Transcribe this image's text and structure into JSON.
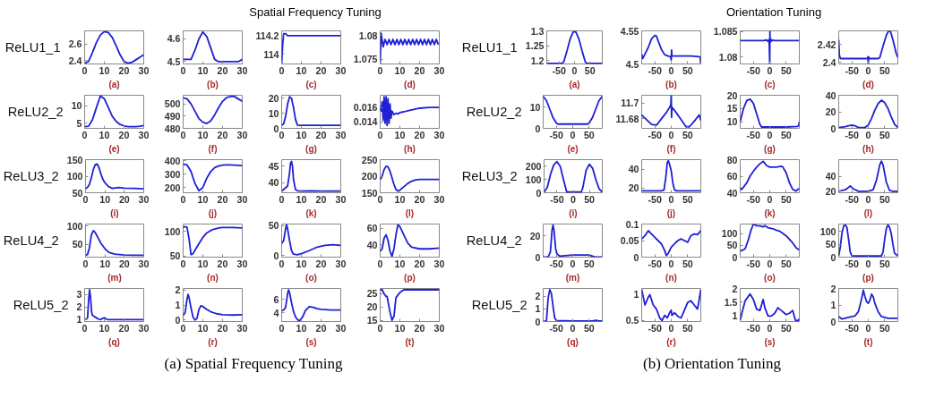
{
  "chart_data": [
    {
      "type": "line",
      "annotations": [
        "(a) Spatial Frequency Tuning"
      ],
      "ylabel": "ReLU1_1",
      "xlabel": "(a)",
      "xlim": [
        0,
        30
      ],
      "ylim": [
        2.36,
        2.76
      ],
      "xticks": [
        0,
        10,
        20,
        30
      ],
      "yticks": [
        2.4,
        2.6
      ],
      "x": [
        0,
        2,
        4,
        6,
        8,
        10,
        12,
        14,
        16,
        18,
        20,
        22,
        24,
        26,
        28,
        30
      ],
      "series": [
        {
          "color": "#1f1fd6",
          "values": [
            2.37,
            2.39,
            2.5,
            2.62,
            2.71,
            2.75,
            2.74,
            2.68,
            2.58,
            2.47,
            2.39,
            2.37,
            2.38,
            2.41,
            2.44,
            2.47
          ]
        }
      ]
    },
    {
      "type": "line",
      "xlabel": "(b)",
      "xlim": [
        0,
        30
      ],
      "ylim": [
        4.49,
        4.635
      ],
      "xticks": [
        0,
        10,
        20,
        30
      ],
      "yticks": [
        4.5,
        4.6
      ],
      "x": [
        0,
        2,
        4,
        6,
        8,
        10,
        12,
        14,
        16,
        18,
        20,
        22,
        24,
        26,
        28,
        30
      ],
      "series": [
        {
          "color": "#1f1fd6",
          "values": [
            4.51,
            4.51,
            4.51,
            4.55,
            4.6,
            4.63,
            4.61,
            4.56,
            4.51,
            4.5,
            4.5,
            4.5,
            4.5,
            4.5,
            4.5,
            4.51
          ]
        }
      ]
    },
    {
      "type": "line",
      "title": "Spatial Frequency Tuning",
      "xlabel": "(c)",
      "xlim": [
        0,
        30
      ],
      "ylim": [
        113.9,
        114.25
      ],
      "xticks": [
        0,
        10,
        20,
        30
      ],
      "yticks": [
        114,
        114.2
      ],
      "x": [
        0,
        0.5,
        1,
        2,
        3,
        5,
        10,
        20,
        30
      ],
      "series": [
        {
          "color": "#1f1fd6",
          "values": [
            113.9,
            114.1,
            114.22,
            114.22,
            114.2,
            114.2,
            114.2,
            114.2,
            114.2
          ]
        }
      ]
    },
    {
      "type": "line",
      "xlabel": "(d)",
      "xlim": [
        0,
        30
      ],
      "ylim": [
        1.074,
        1.081
      ],
      "xticks": [
        0,
        10,
        20,
        30
      ],
      "yticks": [
        1.075,
        1.08
      ],
      "x": [
        0,
        0.5,
        1.5,
        2.5,
        3.5,
        4.5,
        5.5,
        6.5,
        7.5,
        8.5,
        9.5,
        10.5,
        11.5,
        12.5,
        13.5,
        14.5,
        15.5,
        16.5,
        17.5,
        18.5,
        19.5,
        20.5,
        21.5,
        22.5,
        23.5,
        24.5,
        25.5,
        26.5,
        27.5,
        28.5,
        29.5
      ],
      "series": [
        {
          "color": "#1f1fd6",
          "values": [
            1.074,
            1.0805,
            1.0776,
            1.0792,
            1.0781,
            1.0792,
            1.0781,
            1.0792,
            1.0781,
            1.0792,
            1.0781,
            1.0792,
            1.0781,
            1.0792,
            1.0781,
            1.0792,
            1.0781,
            1.0792,
            1.0781,
            1.0792,
            1.0781,
            1.0792,
            1.0781,
            1.0792,
            1.0781,
            1.0792,
            1.0781,
            1.0792,
            1.0781,
            1.0792,
            1.0781
          ]
        }
      ]
    },
    {
      "type": "line",
      "ylabel": "ReLU2_2",
      "xlabel": "(e)",
      "xlim": [
        0,
        30
      ],
      "ylim": [
        3.5,
        13
      ],
      "xticks": [
        0,
        10,
        20,
        30
      ],
      "yticks": [
        5,
        10
      ],
      "x": [
        0,
        2,
        4,
        6,
        8,
        10,
        12,
        14,
        16,
        18,
        20,
        22,
        24,
        26,
        28,
        30
      ],
      "series": [
        {
          "color": "#1f1fd6",
          "values": [
            4,
            4.1,
            6,
            9.5,
            12.8,
            12,
            9.5,
            7,
            5.5,
            4.6,
            4.2,
            4,
            4,
            4,
            4.1,
            4.3
          ]
        }
      ]
    },
    {
      "type": "line",
      "xlabel": "(f)",
      "xlim": [
        0,
        30
      ],
      "ylim": [
        480,
        507
      ],
      "xticks": [
        0,
        10,
        20,
        30
      ],
      "yticks": [
        480,
        490,
        500
      ],
      "x": [
        0,
        2,
        4,
        6,
        8,
        10,
        12,
        14,
        16,
        18,
        20,
        22,
        24,
        26,
        28,
        30
      ],
      "series": [
        {
          "color": "#1f1fd6",
          "values": [
            505,
            504,
            500,
            494,
            488,
            485,
            484,
            486,
            491,
            497,
            502,
            505,
            506,
            506,
            504,
            502
          ]
        }
      ]
    },
    {
      "type": "line",
      "xlabel": "(g)",
      "xlim": [
        0,
        30
      ],
      "ylim": [
        0,
        22
      ],
      "xticks": [
        0,
        10,
        20,
        30
      ],
      "yticks": [
        0,
        10,
        20
      ],
      "x": [
        0,
        1,
        2,
        3,
        4,
        5,
        6,
        7,
        8,
        9,
        10,
        15,
        20,
        25,
        30
      ],
      "series": [
        {
          "color": "#1f1fd6",
          "values": [
            2,
            3,
            8,
            16,
            21,
            20,
            14,
            6,
            2.2,
            2,
            2,
            2,
            2,
            2,
            2
          ]
        }
      ]
    },
    {
      "type": "line",
      "xlabel": "(h)",
      "xlim": [
        0,
        30
      ],
      "ylim": [
        0.0131,
        0.0177
      ],
      "xticks": [
        0,
        10,
        20,
        30
      ],
      "yticks": [
        0.014,
        0.016
      ],
      "x": [
        0,
        0.5,
        1,
        1.5,
        2,
        2.5,
        3,
        3.5,
        4,
        4.5,
        5,
        5.5,
        6,
        7,
        8,
        9,
        10,
        12,
        15,
        20,
        25,
        30
      ],
      "series": [
        {
          "color": "#1f1fd6",
          "values": [
            0.0162,
            0.0155,
            0.0168,
            0.0142,
            0.0175,
            0.0138,
            0.0175,
            0.0135,
            0.0172,
            0.0138,
            0.0165,
            0.0145,
            0.0155,
            0.015,
            0.0152,
            0.0151,
            0.0153,
            0.0154,
            0.0156,
            0.0159,
            0.016,
            0.016
          ]
        }
      ]
    },
    {
      "type": "line",
      "ylabel": "ReLU3_2",
      "xlabel": "(i)",
      "xlim": [
        0,
        30
      ],
      "ylim": [
        50,
        150
      ],
      "xticks": [
        0,
        10,
        20,
        30
      ],
      "yticks": [
        50,
        100,
        150
      ],
      "x": [
        0,
        1,
        2,
        3,
        4,
        5,
        6,
        7,
        8,
        9,
        10,
        12,
        14,
        17,
        20,
        25,
        30
      ],
      "series": [
        {
          "color": "#1f1fd6",
          "values": [
            62,
            66,
            75,
            95,
            120,
            135,
            137,
            125,
            105,
            90,
            80,
            68,
            63,
            66,
            64,
            63,
            62
          ]
        }
      ]
    },
    {
      "type": "line",
      "xlabel": "(j)",
      "xlim": [
        0,
        30
      ],
      "ylim": [
        160,
        410
      ],
      "xticks": [
        0,
        10,
        20,
        30
      ],
      "yticks": [
        200,
        300,
        400
      ],
      "x": [
        0,
        2,
        4,
        6,
        8,
        10,
        12,
        14,
        16,
        18,
        20,
        22,
        24,
        26,
        28,
        30
      ],
      "series": [
        {
          "color": "#1f1fd6",
          "values": [
            375,
            370,
            320,
            230,
            175,
            200,
            270,
            320,
            350,
            362,
            368,
            370,
            370,
            369,
            367,
            365
          ]
        }
      ]
    },
    {
      "type": "line",
      "xlabel": "(k)",
      "xlim": [
        0,
        30
      ],
      "ylim": [
        37,
        47
      ],
      "xticks": [
        0,
        10,
        20,
        30
      ],
      "yticks": [
        40,
        45
      ],
      "x": [
        0,
        1,
        2,
        3,
        4,
        4.5,
        5,
        5.5,
        6,
        7,
        8,
        10,
        15,
        20,
        25,
        30
      ],
      "series": [
        {
          "color": "#1f1fd6",
          "values": [
            37.5,
            38,
            38.5,
            39,
            43,
            46,
            46.5,
            45,
            41,
            38,
            37.6,
            37.5,
            37.6,
            37.5,
            37.5,
            37.5
          ]
        }
      ]
    },
    {
      "type": "line",
      "xlabel": "(l)",
      "xlim": [
        0,
        30
      ],
      "ylim": [
        150,
        250
      ],
      "xticks": [
        0,
        10,
        20,
        30
      ],
      "yticks": [
        150,
        200,
        250
      ],
      "x": [
        0,
        1,
        2,
        3,
        4,
        5,
        6,
        7,
        8,
        9,
        10,
        12,
        14,
        16,
        18,
        20,
        25,
        30
      ],
      "series": [
        {
          "color": "#1f1fd6",
          "values": [
            190,
            200,
            220,
            230,
            228,
            215,
            195,
            175,
            160,
            155,
            158,
            168,
            178,
            185,
            189,
            190,
            190,
            190
          ]
        }
      ]
    },
    {
      "type": "line",
      "ylabel": "ReLU4_2",
      "xlabel": "(m)",
      "xlim": [
        0,
        30
      ],
      "ylim": [
        15,
        105
      ],
      "xticks": [
        0,
        10,
        20,
        30
      ],
      "yticks": [
        50,
        100
      ],
      "x": [
        0,
        1,
        2,
        3,
        4,
        5,
        6,
        7,
        8,
        10,
        12,
        15,
        20,
        25,
        30
      ],
      "series": [
        {
          "color": "#1f1fd6",
          "values": [
            20,
            22,
            40,
            75,
            87,
            82,
            72,
            62,
            52,
            38,
            28,
            23,
            21,
            20,
            20
          ]
        }
      ]
    },
    {
      "type": "line",
      "xlabel": "(n)",
      "xlim": [
        0,
        30
      ],
      "ylim": [
        48,
        115
      ],
      "xticks": [
        0,
        10,
        20,
        30
      ],
      "yticks": [
        50,
        100
      ],
      "x": [
        0,
        1,
        2,
        3,
        4,
        5,
        6,
        8,
        10,
        12,
        14,
        16,
        18,
        20,
        25,
        30
      ],
      "series": [
        {
          "color": "#1f1fd6",
          "values": [
            108,
            110,
            108,
            85,
            53,
            55,
            62,
            75,
            88,
            97,
            102,
            105,
            107,
            108,
            108,
            107
          ]
        }
      ]
    },
    {
      "type": "line",
      "xlabel": "(o)",
      "xlim": [
        0,
        30
      ],
      "ylim": [
        -3,
        53
      ],
      "xticks": [
        0,
        10,
        20,
        30
      ],
      "yticks": [
        0,
        50
      ],
      "x": [
        0,
        1,
        2,
        2.5,
        3,
        4,
        5,
        6,
        8,
        10,
        14,
        18,
        22,
        26,
        30
      ],
      "series": [
        {
          "color": "#1f1fd6",
          "values": [
            20,
            25,
            45,
            52,
            45,
            25,
            8,
            2,
            1,
            3,
            8,
            14,
            17,
            18,
            17
          ]
        }
      ]
    },
    {
      "type": "line",
      "xlabel": "(p)",
      "xlim": [
        0,
        30
      ],
      "ylim": [
        25,
        65
      ],
      "xticks": [
        0,
        10,
        20,
        30
      ],
      "yticks": [
        40,
        60
      ],
      "x": [
        0,
        1,
        2,
        3,
        4,
        5,
        6,
        7,
        8,
        9,
        10,
        12,
        14,
        16,
        20,
        25,
        30
      ],
      "series": [
        {
          "color": "#1f1fd6",
          "values": [
            32,
            35,
            48,
            52,
            45,
            32,
            26,
            35,
            52,
            64,
            62,
            52,
            42,
            37,
            35,
            35,
            36
          ]
        }
      ]
    },
    {
      "type": "line",
      "ylabel": "ReLU5_2",
      "xlabel": "(q)",
      "xlim": [
        0,
        30
      ],
      "ylim": [
        0.8,
        3.5
      ],
      "xticks": [
        0,
        10,
        20,
        30
      ],
      "yticks": [
        1,
        2,
        3
      ],
      "x": [
        0,
        1,
        1.5,
        2,
        2.5,
        3,
        3.5,
        4,
        5,
        6,
        7,
        8,
        9,
        10,
        11,
        12,
        15,
        20,
        30
      ],
      "series": [
        {
          "color": "#1f1fd6",
          "values": [
            1,
            1,
            1.1,
            2.5,
            3.4,
            2.8,
            1.6,
            1.3,
            1.2,
            1.1,
            1,
            0.95,
            1.05,
            1.1,
            1,
            0.95,
            0.95,
            0.95,
            0.95
          ]
        }
      ]
    },
    {
      "type": "line",
      "xlabel": "(r)",
      "xlim": [
        0,
        30
      ],
      "ylim": [
        -0.1,
        2.1
      ],
      "xticks": [
        0,
        10,
        20,
        30
      ],
      "yticks": [
        0,
        1,
        2
      ],
      "x": [
        0,
        1,
        2,
        2.5,
        3,
        4,
        5,
        6,
        7,
        8,
        9,
        10,
        12,
        14,
        17,
        20,
        25,
        30
      ],
      "series": [
        {
          "color": "#1f1fd6",
          "values": [
            0.3,
            0.5,
            1.4,
            1.7,
            1.5,
            0.8,
            0.2,
            0,
            0.1,
            0.7,
            0.95,
            0.9,
            0.7,
            0.55,
            0.42,
            0.35,
            0.33,
            0.35
          ]
        }
      ]
    },
    {
      "type": "line",
      "xlabel": "(s)",
      "xlim": [
        0,
        30
      ],
      "ylim": [
        2.7,
        7.6
      ],
      "xticks": [
        0,
        10,
        20,
        30
      ],
      "yticks": [
        4,
        6
      ],
      "x": [
        0,
        1,
        2,
        3,
        3.5,
        4,
        5,
        6,
        7,
        8,
        9,
        10,
        11,
        12,
        14,
        16,
        18,
        20,
        25,
        30
      ],
      "series": [
        {
          "color": "#1f1fd6",
          "values": [
            4.3,
            4.4,
            4.8,
            6.8,
            7.4,
            7,
            5.5,
            4.2,
            3.4,
            3,
            2.8,
            3.1,
            3.6,
            4.3,
            4.9,
            4.8,
            4.6,
            4.5,
            4.4,
            4.4
          ]
        }
      ]
    },
    {
      "type": "line",
      "xlabel": "(t)",
      "xlim": [
        0,
        30
      ],
      "ylim": [
        14.5,
        27
      ],
      "xticks": [
        0,
        10,
        20,
        30
      ],
      "yticks": [
        15,
        20,
        25
      ],
      "x": [
        0,
        1,
        2,
        3,
        3.5,
        4,
        5,
        6,
        7,
        8,
        9,
        10,
        12,
        15,
        20,
        25,
        30
      ],
      "series": [
        {
          "color": "#1f1fd6",
          "values": [
            26.5,
            26.5,
            25,
            24,
            24,
            22,
            18,
            15,
            16.5,
            23.5,
            24.5,
            25.5,
            26.5,
            26.5,
            26.5,
            26.5,
            26.5
          ]
        }
      ]
    },
    {
      "type": "line",
      "annotations": [
        "(b) Orientation Tuning"
      ],
      "ylabel": "ReLU1_1",
      "xlabel": "(a)",
      "xlim": [
        -90,
        90
      ],
      "ylim": [
        1.188,
        1.3
      ],
      "xticks": [
        -50,
        0,
        50
      ],
      "yticks": [
        1.2,
        1.25,
        1.3
      ],
      "x": [
        -90,
        -40,
        -35,
        -25,
        -15,
        -5,
        0,
        5,
        15,
        25,
        35,
        40,
        90
      ],
      "series": [
        {
          "color": "#1f1fd6",
          "values": [
            1.19,
            1.19,
            1.195,
            1.23,
            1.27,
            1.295,
            1.298,
            1.295,
            1.27,
            1.23,
            1.195,
            1.19,
            1.19
          ]
        }
      ]
    },
    {
      "type": "line",
      "xlabel": "(b)",
      "xlim": [
        -90,
        90
      ],
      "ylim": [
        4.5,
        4.55
      ],
      "xticks": [
        -50,
        0,
        50
      ],
      "yticks": [
        4.5,
        4.55
      ],
      "x": [
        -90,
        -87,
        -80,
        -70,
        -60,
        -50,
        -45,
        -40,
        -30,
        -20,
        -10,
        -2,
        -1,
        0,
        1,
        2,
        5,
        30,
        60,
        85,
        88,
        90
      ],
      "series": [
        {
          "color": "#1f1fd6",
          "values": [
            4.515,
            4.508,
            4.515,
            4.525,
            4.538,
            4.543,
            4.542,
            4.535,
            4.522,
            4.514,
            4.512,
            4.511,
            4.508,
            4.506,
            4.521,
            4.512,
            4.512,
            4.512,
            4.512,
            4.511,
            4.51,
            4.5
          ]
        }
      ]
    },
    {
      "type": "line",
      "title": "Orientation Tuning",
      "xlabel": "(c)",
      "xlim": [
        -90,
        90
      ],
      "ylim": [
        1.0786,
        1.0851
      ],
      "xticks": [
        -50,
        0,
        50
      ],
      "yticks": [
        1.08,
        1.085
      ],
      "x": [
        -90,
        -20,
        -10,
        -5,
        -2,
        0,
        0.5,
        1,
        3,
        5,
        10,
        15,
        90
      ],
      "series": [
        {
          "color": "#1f1fd6",
          "values": [
            1.0832,
            1.0832,
            1.0833,
            1.083,
            1.0834,
            1.0786,
            1.085,
            1.0828,
            1.0835,
            1.0831,
            1.0833,
            1.0832,
            1.0832
          ]
        }
      ]
    },
    {
      "type": "line",
      "xlabel": "(d)",
      "xlim": [
        -90,
        90
      ],
      "ylim": [
        2.398,
        2.435
      ],
      "xticks": [
        -50,
        0,
        50
      ],
      "yticks": [
        2.4,
        2.42
      ],
      "x": [
        -90,
        -88,
        -85,
        -70,
        -30,
        -3,
        -1,
        0,
        1,
        3,
        30,
        35,
        45,
        55,
        62,
        68,
        75,
        85,
        90
      ],
      "series": [
        {
          "color": "#1f1fd6",
          "values": [
            2.425,
            2.408,
            2.404,
            2.404,
            2.404,
            2.404,
            2.406,
            2.398,
            2.406,
            2.404,
            2.404,
            2.405,
            2.418,
            2.43,
            2.435,
            2.434,
            2.425,
            2.41,
            2.405
          ]
        }
      ]
    },
    {
      "type": "line",
      "ylabel": "ReLU2_2",
      "xlabel": "(e)",
      "xlim": [
        -90,
        90
      ],
      "ylim": [
        0,
        15.5
      ],
      "xticks": [
        -50,
        0,
        50
      ],
      "yticks": [
        0,
        10
      ],
      "x": [
        -90,
        -80,
        -70,
        -60,
        -50,
        -45,
        45,
        50,
        60,
        70,
        80,
        90
      ],
      "series": [
        {
          "color": "#1f1fd6",
          "values": [
            15,
            13,
            9,
            5,
            2.5,
            2,
            2,
            2.5,
            5,
            9,
            13,
            15
          ]
        }
      ]
    },
    {
      "type": "line",
      "xlabel": "(f)",
      "xlim": [
        -90,
        90
      ],
      "ylim": [
        11.668,
        11.71
      ],
      "xticks": [
        -50,
        0,
        50
      ],
      "yticks": [
        11.68,
        11.7
      ],
      "x": [
        -90,
        -85,
        -70,
        -60,
        -45,
        -30,
        -15,
        -3,
        -1,
        0,
        1,
        2,
        15,
        30,
        45,
        55,
        70,
        85,
        90
      ],
      "series": [
        {
          "color": "#1f1fd6",
          "values": [
            11.685,
            11.683,
            11.677,
            11.673,
            11.672,
            11.68,
            11.688,
            11.696,
            11.7,
            11.71,
            11.682,
            11.695,
            11.688,
            11.679,
            11.67,
            11.67,
            11.677,
            11.685,
            11.678
          ]
        }
      ]
    },
    {
      "type": "line",
      "xlabel": "(g)",
      "xlim": [
        -90,
        90
      ],
      "ylim": [
        7.5,
        20
      ],
      "xticks": [
        -50,
        0,
        50
      ],
      "yticks": [
        10,
        15,
        20
      ],
      "x": [
        -90,
        -80,
        -70,
        -60,
        -50,
        -40,
        -30,
        -25,
        0,
        50,
        85,
        88,
        90
      ],
      "series": [
        {
          "color": "#1f1fd6",
          "values": [
            10,
            15,
            18,
            18.5,
            17,
            13,
            9,
            8,
            8,
            8,
            8.2,
            8.6,
            10
          ]
        }
      ]
    },
    {
      "type": "line",
      "xlabel": "(h)",
      "xlim": [
        -90,
        90
      ],
      "ylim": [
        0,
        40
      ],
      "xticks": [
        -50,
        0,
        50
      ],
      "yticks": [
        0,
        20,
        40
      ],
      "x": [
        -90,
        -70,
        -60,
        -50,
        -40,
        -30,
        -10,
        0,
        10,
        20,
        30,
        40,
        50,
        60,
        70,
        80,
        90
      ],
      "series": [
        {
          "color": "#1f1fd6",
          "values": [
            1,
            2,
            3,
            4,
            3,
            1,
            1,
            4,
            12,
            22,
            30,
            34,
            31,
            24,
            14,
            5,
            1
          ]
        }
      ]
    },
    {
      "type": "line",
      "ylabel": "ReLU3_2",
      "xlabel": "(i)",
      "xlim": [
        -90,
        90
      ],
      "ylim": [
        0,
        250
      ],
      "xticks": [
        -50,
        0,
        50
      ],
      "yticks": [
        0,
        100,
        200
      ],
      "x": [
        -90,
        -80,
        -70,
        -60,
        -50,
        -40,
        -30,
        -20,
        25,
        30,
        40,
        50,
        60,
        70,
        80,
        90
      ],
      "series": [
        {
          "color": "#1f1fd6",
          "values": [
            5,
            40,
            140,
            210,
            235,
            200,
            100,
            5,
            5,
            40,
            170,
            215,
            185,
            100,
            30,
            5
          ]
        }
      ]
    },
    {
      "type": "line",
      "xlabel": "(j)",
      "xlim": [
        -90,
        90
      ],
      "ylim": [
        15,
        50
      ],
      "xticks": [
        -50,
        0,
        50
      ],
      "yticks": [
        20,
        40
      ],
      "x": [
        -90,
        -30,
        -22,
        -17,
        -12,
        -9,
        -5,
        0,
        5,
        10,
        15,
        90
      ],
      "series": [
        {
          "color": "#1f1fd6",
          "values": [
            17,
            17,
            18,
            30,
            47,
            49,
            45,
            38,
            25,
            18,
            17,
            17
          ]
        }
      ]
    },
    {
      "type": "line",
      "xlabel": "(k)",
      "xlim": [
        -90,
        90
      ],
      "ylim": [
        40,
        80
      ],
      "xticks": [
        -50,
        0,
        50
      ],
      "yticks": [
        40,
        60,
        80
      ],
      "x": [
        -90,
        -85,
        -70,
        -60,
        -50,
        -40,
        -30,
        -20,
        -10,
        0,
        20,
        35,
        40,
        50,
        60,
        70,
        80,
        85,
        90
      ],
      "series": [
        {
          "color": "#1f1fd6",
          "values": [
            46,
            44,
            52,
            60,
            66,
            71,
            75,
            78,
            73,
            71,
            71,
            72,
            71,
            64,
            52,
            44,
            42,
            44,
            45
          ]
        }
      ]
    },
    {
      "type": "line",
      "xlabel": "(l)",
      "xlim": [
        -90,
        90
      ],
      "ylim": [
        18,
        62
      ],
      "xticks": [
        -50,
        0,
        50
      ],
      "yticks": [
        20,
        40
      ],
      "x": [
        -90,
        -70,
        -60,
        -55,
        -45,
        -30,
        0,
        15,
        25,
        35,
        40,
        45,
        55,
        65,
        75,
        90
      ],
      "series": [
        {
          "color": "#1f1fd6",
          "values": [
            20,
            22,
            25,
            27,
            23,
            20,
            20,
            22,
            35,
            55,
            60,
            55,
            32,
            21,
            20,
            20
          ]
        }
      ]
    },
    {
      "type": "line",
      "ylabel": "ReLU4_2",
      "xlabel": "(m)",
      "xlim": [
        -90,
        90
      ],
      "ylim": [
        0,
        31
      ],
      "xticks": [
        -50,
        0,
        50
      ],
      "yticks": [
        0,
        20
      ],
      "x": [
        -90,
        -75,
        -68,
        -63,
        -60,
        -57,
        -52,
        -48,
        -40,
        0,
        50,
        60,
        70,
        90
      ],
      "series": [
        {
          "color": "#1f1fd6",
          "values": [
            0,
            0,
            5,
            25,
            30,
            25,
            8,
            3,
            1,
            2,
            2,
            1,
            0,
            0
          ]
        }
      ]
    },
    {
      "type": "line",
      "xlabel": "(n)",
      "xlim": [
        -90,
        90
      ],
      "ylim": [
        0,
        0.1
      ],
      "xticks": [
        -50,
        0,
        50
      ],
      "yticks": [
        0,
        0.05,
        0.1
      ],
      "x": [
        -90,
        -80,
        -70,
        -60,
        -50,
        -40,
        -30,
        -20,
        -15,
        -10,
        0,
        10,
        20,
        30,
        40,
        50,
        60,
        70,
        80,
        90
      ],
      "series": [
        {
          "color": "#1f1fd6",
          "values": [
            0.055,
            0.065,
            0.08,
            0.07,
            0.06,
            0.05,
            0.04,
            0.02,
            0.005,
            0.01,
            0.03,
            0.04,
            0.05,
            0.055,
            0.05,
            0.045,
            0.065,
            0.07,
            0.068,
            0.08
          ]
        }
      ]
    },
    {
      "type": "line",
      "xlabel": "(o)",
      "xlim": [
        -90,
        90
      ],
      "ylim": [
        0,
        140
      ],
      "xticks": [
        -50,
        0,
        50
      ],
      "yticks": [
        0,
        50,
        100
      ],
      "x": [
        -90,
        -75,
        -65,
        -58,
        -50,
        -40,
        -30,
        -20,
        -15,
        -5,
        10,
        20,
        30,
        40,
        50,
        60,
        70,
        80,
        90
      ],
      "series": [
        {
          "color": "#1f1fd6",
          "values": [
            25,
            35,
            75,
            110,
            140,
            133,
            132,
            128,
            133,
            124,
            120,
            114,
            110,
            100,
            90,
            75,
            60,
            40,
            30
          ]
        }
      ]
    },
    {
      "type": "line",
      "xlabel": "(p)",
      "xlim": [
        -90,
        90
      ],
      "ylim": [
        0,
        128
      ],
      "xticks": [
        -50,
        0,
        50
      ],
      "yticks": [
        0,
        50,
        100
      ],
      "x": [
        -90,
        -85,
        -80,
        -75,
        -70,
        -65,
        -60,
        -55,
        -50,
        40,
        45,
        50,
        55,
        60,
        65,
        70,
        75,
        80,
        90
      ],
      "series": [
        {
          "color": "#1f1fd6",
          "values": [
            5,
            40,
            95,
            120,
            125,
            115,
            70,
            20,
            5,
            5,
            20,
            70,
            110,
            125,
            115,
            90,
            50,
            15,
            5
          ]
        }
      ]
    },
    {
      "type": "line",
      "ylabel": "ReLU5_2",
      "xlabel": "(q)",
      "xlim": [
        -90,
        90
      ],
      "ylim": [
        0,
        2.6
      ],
      "xticks": [
        -50,
        0,
        50
      ],
      "yticks": [
        0,
        1,
        2
      ],
      "x": [
        -90,
        -80,
        -75,
        -70,
        -65,
        -60,
        -55,
        -50,
        0,
        60,
        70,
        80,
        90
      ],
      "series": [
        {
          "color": "#1f1fd6",
          "values": [
            0,
            0.05,
            1.8,
            2.5,
            2.2,
            1.2,
            0.3,
            0.08,
            0.05,
            0.05,
            0.1,
            0.05,
            0.05
          ]
        }
      ]
    },
    {
      "type": "line",
      "xlabel": "(r)",
      "xlim": [
        -90,
        90
      ],
      "ylim": [
        0.48,
        1.12
      ],
      "xticks": [
        -50,
        0,
        50
      ],
      "yticks": [
        0.5,
        1
      ],
      "x": [
        -90,
        -80,
        -70,
        -65,
        -55,
        -45,
        -35,
        -28,
        -20,
        -12,
        -5,
        0,
        2,
        10,
        20,
        30,
        40,
        50,
        60,
        70,
        80,
        85,
        90
      ],
      "series": [
        {
          "color": "#1f1fd6",
          "values": [
            1.1,
            0.8,
            0.95,
            1.0,
            0.8,
            0.72,
            0.55,
            0.5,
            0.6,
            0.55,
            0.65,
            0.7,
            0.6,
            0.65,
            0.58,
            0.55,
            0.7,
            0.85,
            0.88,
            0.8,
            0.72,
            0.9,
            1.1
          ]
        }
      ]
    },
    {
      "type": "line",
      "xlabel": "(s)",
      "xlim": [
        -90,
        90
      ],
      "ylim": [
        0.8,
        2
      ],
      "xticks": [
        -50,
        0,
        50
      ],
      "yticks": [
        1,
        1.5,
        2
      ],
      "x": [
        -90,
        -85,
        -75,
        -60,
        -50,
        -40,
        -30,
        -20,
        -15,
        -5,
        5,
        15,
        25,
        35,
        50,
        60,
        70,
        78,
        85,
        90
      ],
      "series": [
        {
          "color": "#1f1fd6",
          "values": [
            0.85,
            1.1,
            1.55,
            1.8,
            1.6,
            1.25,
            1.2,
            1.6,
            1.3,
            1.0,
            1.0,
            1.1,
            1.3,
            1.2,
            1.05,
            1.1,
            1.2,
            0.85,
            0.82,
            0.9
          ]
        }
      ]
    },
    {
      "type": "line",
      "xlabel": "(t)",
      "xlim": [
        -90,
        90
      ],
      "ylim": [
        0,
        2
      ],
      "xticks": [
        -50,
        0,
        50
      ],
      "yticks": [
        0,
        1,
        2
      ],
      "x": [
        -90,
        -80,
        -60,
        -40,
        -30,
        -20,
        -15,
        -10,
        -5,
        0,
        5,
        10,
        15,
        20,
        30,
        40,
        60,
        90
      ],
      "series": [
        {
          "color": "#1f1fd6",
          "values": [
            0.3,
            0.15,
            0.25,
            0.35,
            0.6,
            1.4,
            1.9,
            1.5,
            1.2,
            1.1,
            1.3,
            1.65,
            1.5,
            1.1,
            0.6,
            0.3,
            0.2,
            0.2
          ]
        }
      ]
    }
  ]
}
